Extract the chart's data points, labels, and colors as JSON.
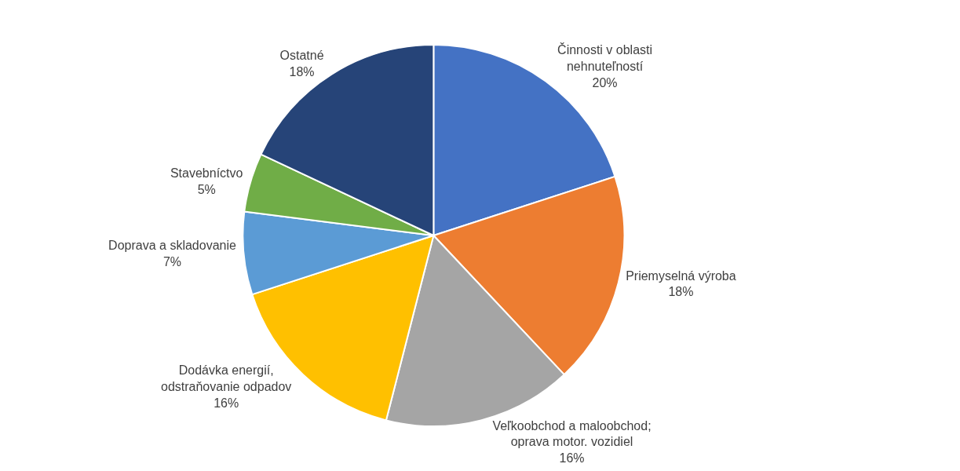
{
  "chart_data": {
    "type": "pie",
    "categories": [
      "Činnosti v oblasti nehnuteľností",
      "Priemyselná výroba",
      "Veľkoobchod a maloobchod; oprava motor. vozidiel",
      "Dodávka energií, odstraňovanie odpadov",
      "Doprava a skladovanie",
      "Stavebníctvo",
      "Ostatné"
    ],
    "values": [
      20,
      18,
      16,
      16,
      7,
      5,
      18
    ],
    "value_labels": [
      "20%",
      "18%",
      "16%",
      "16%",
      "7%",
      "5%",
      "18%"
    ],
    "colors": [
      "#4472c4",
      "#ed7d31",
      "#a5a5a5",
      "#ffc000",
      "#5b9bd5",
      "#70ad47",
      "#264478"
    ],
    "legend": false
  }
}
